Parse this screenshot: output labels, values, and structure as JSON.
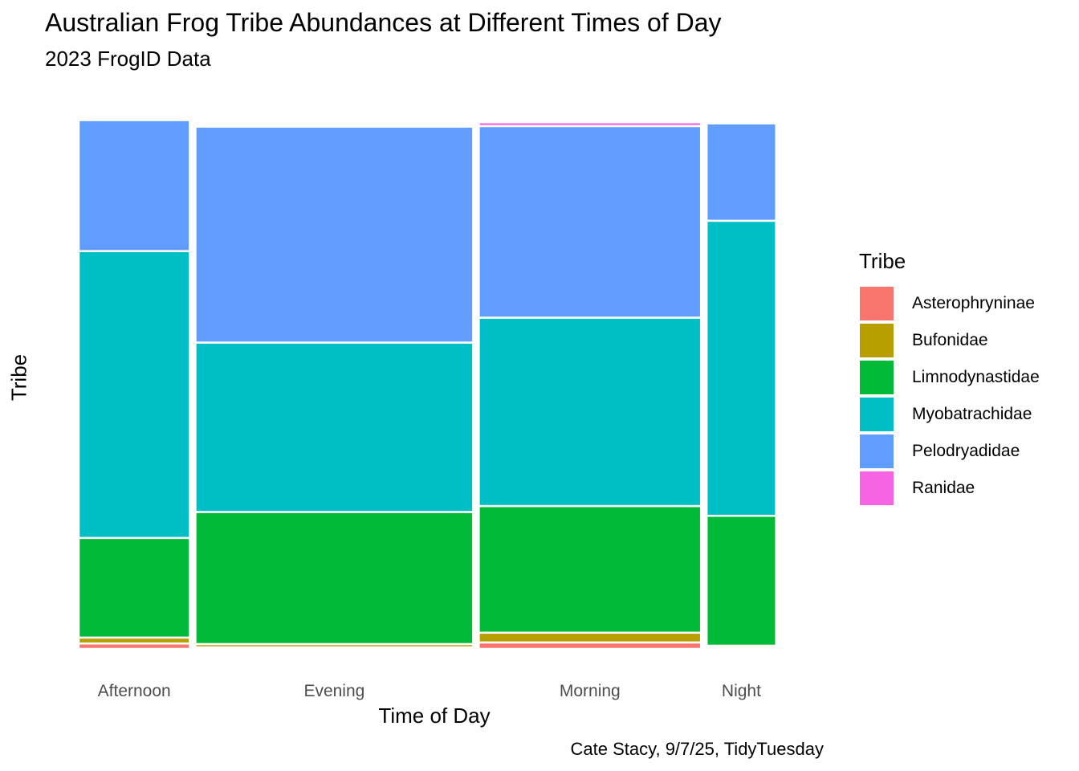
{
  "chart_data": {
    "type": "mosaic",
    "title": "Australian Frog Tribe Abundances at Different Times of Day",
    "subtitle": "2023 FrogID Data",
    "xlabel": "Time of Day",
    "ylabel": "Tribe",
    "caption": "Cate Stacy, 9/7/25, TidyTuesday",
    "legend_title": "Tribe",
    "legend_position": "right",
    "x_axis_labels": [
      "Afternoon",
      "Evening",
      "Morning",
      "Night"
    ],
    "tribes": [
      "Asterophryninae",
      "Bufonidae",
      "Limnodynastidae",
      "Myobatrachidae",
      "Pelodryadidae",
      "Ranidae"
    ],
    "colors": {
      "Asterophryninae": "#F8766D",
      "Bufonidae": "#B79F00",
      "Limnodynastidae": "#00BA38",
      "Myobatrachidae": "#00BFC4",
      "Pelodryadidae": "#619CFF",
      "Ranidae": "#F564E3"
    },
    "categories": [
      "Afternoon",
      "Evening",
      "Morning",
      "Night"
    ],
    "column_width_share": [
      0.16,
      0.4,
      0.32,
      0.1
    ],
    "series": [
      {
        "name": "Asterophryninae",
        "values": [
          0.01,
          0.003,
          0.012,
          0.002
        ]
      },
      {
        "name": "Bufonidae",
        "values": [
          0.011,
          0.006,
          0.018,
          0.004
        ]
      },
      {
        "name": "Limnodynastidae",
        "values": [
          0.184,
          0.244,
          0.234,
          0.24
        ]
      },
      {
        "name": "Myobatrachidae",
        "values": [
          0.53,
          0.313,
          0.348,
          0.545
        ]
      },
      {
        "name": "Pelodryadidae",
        "values": [
          0.242,
          0.399,
          0.354,
          0.18
        ]
      },
      {
        "name": "Ranidae",
        "values": [
          0.003,
          0.002,
          0.007,
          0.002
        ]
      }
    ]
  }
}
